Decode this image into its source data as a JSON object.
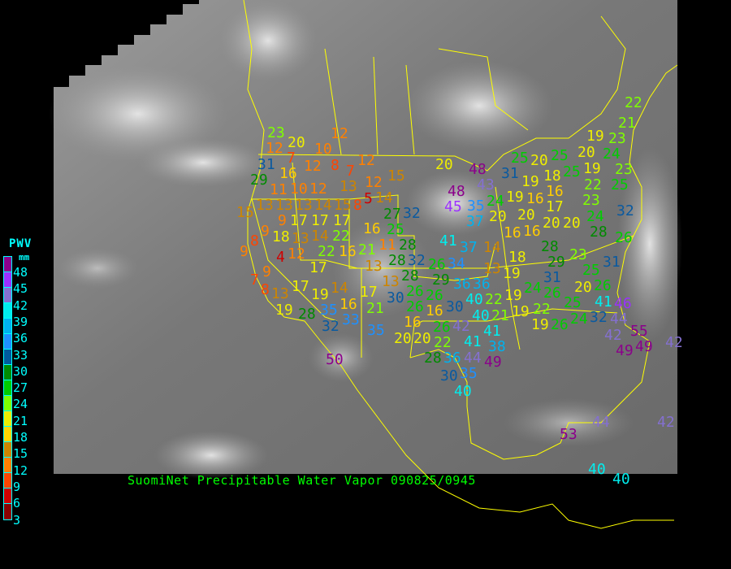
{
  "caption": "SuomiNet Precipitable Water Vapor 090825/0945",
  "legend": {
    "title": "PWV",
    "unit": "mm",
    "labels": [
      "48",
      "45",
      "42",
      "39",
      "36",
      "33",
      "30",
      "27",
      "24",
      "21",
      "18",
      "15",
      "12",
      "9",
      "6",
      "3"
    ],
    "colors": [
      "#8b008b",
      "#9b30ff",
      "#8470d0",
      "#00eeee",
      "#00b2ee",
      "#1e90ff",
      "#005a9c",
      "#008b00",
      "#00cd00",
      "#7fff00",
      "#eeee00",
      "#ffd700",
      "#cd8500",
      "#ff8000",
      "#ff4500",
      "#d00000",
      "#8b0000"
    ]
  },
  "stations": [
    12,
    23,
    12,
    20,
    10,
    31,
    7,
    12,
    8,
    12,
    7,
    29,
    16,
    15,
    11,
    10,
    12,
    13,
    12,
    13,
    5,
    15,
    13,
    13,
    14,
    15,
    8,
    14,
    9,
    17,
    17,
    17,
    16,
    27,
    32,
    9,
    18,
    13,
    14,
    22,
    25,
    8,
    11,
    28,
    9,
    22,
    16,
    21,
    4,
    12,
    17,
    13,
    28,
    32,
    9,
    7,
    8,
    17,
    13,
    19,
    14,
    13,
    28,
    30,
    26,
    19,
    17,
    16,
    21,
    35,
    28,
    33,
    32,
    16,
    20,
    35,
    20,
    48,
    48,
    43,
    45,
    24,
    35,
    37,
    20,
    41,
    37,
    14,
    34,
    26,
    13,
    29,
    36,
    36,
    26,
    26,
    30,
    40,
    22,
    16,
    26,
    40,
    41,
    42,
    21,
    20,
    22,
    41,
    38,
    49,
    36,
    28,
    44,
    35,
    30,
    40,
    22,
    21,
    19,
    23,
    25,
    20,
    24,
    25,
    31,
    20,
    19,
    25,
    23,
    25,
    19,
    18,
    22,
    19,
    16,
    16,
    23,
    17,
    20,
    20,
    20,
    24,
    28,
    32,
    16,
    16,
    26,
    28,
    23,
    18,
    31,
    29,
    31,
    19,
    25,
    24,
    26,
    20,
    26,
    19,
    25,
    41,
    22,
    19,
    46,
    32,
    44,
    19,
    26,
    24,
    55,
    42,
    49,
    49,
    50,
    44,
    42,
    53,
    40,
    40,
    42
  ]
}
